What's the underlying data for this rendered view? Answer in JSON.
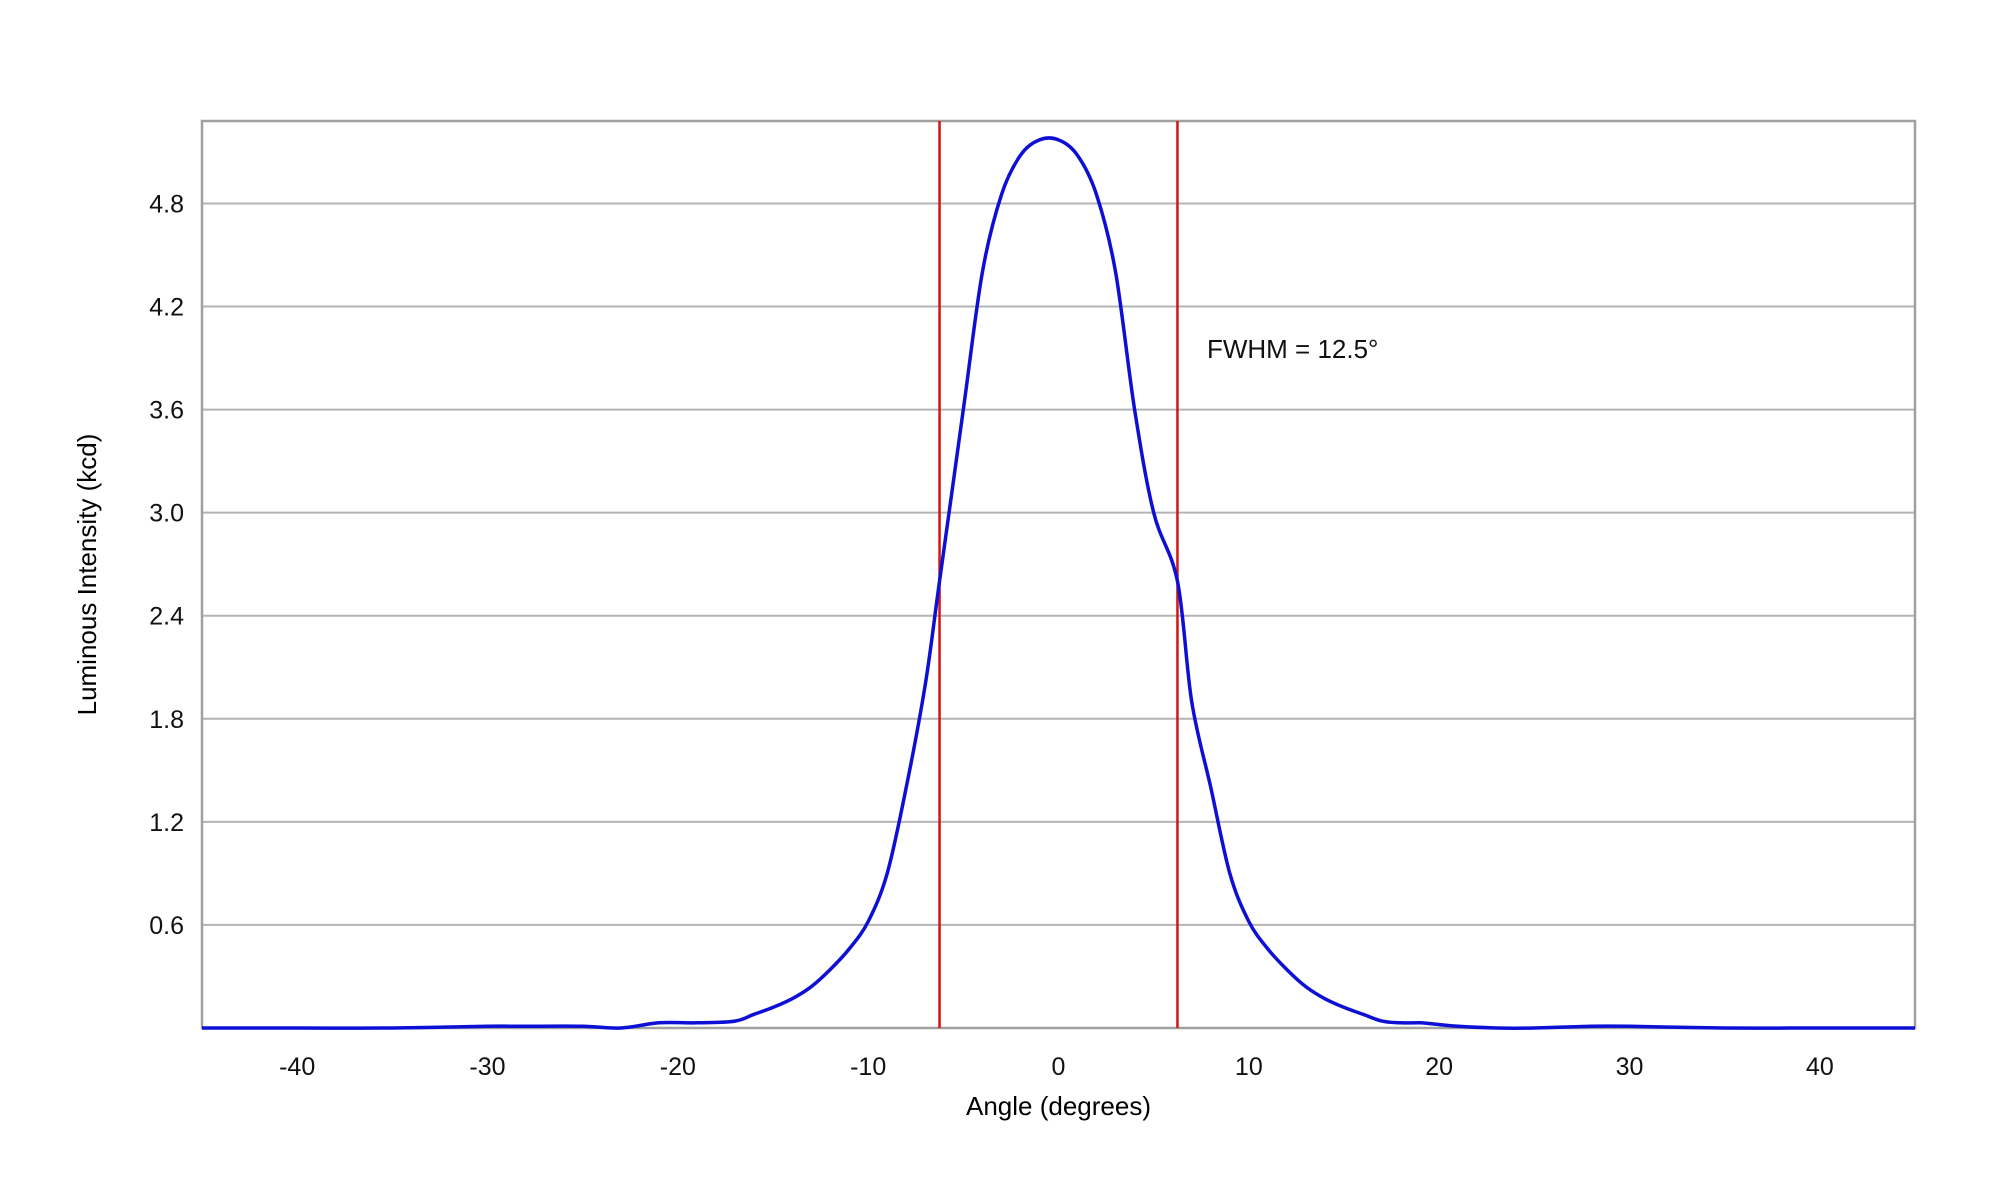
{
  "chart_data": {
    "type": "line",
    "xlabel": "Angle (degrees)",
    "ylabel": "Luminous Intensity (kcd)",
    "xlim": [
      -45,
      45
    ],
    "ylim": [
      0,
      5.28
    ],
    "xticks": [
      -40,
      -30,
      -20,
      -10,
      0,
      10,
      20,
      30,
      40
    ],
    "xtick_labels": [
      "-40",
      "-30",
      "-20",
      "-10",
      "0",
      "10",
      "20",
      "30",
      "40"
    ],
    "yticks": [
      0.6,
      1.2,
      1.8,
      2.4,
      3.0,
      3.6,
      4.2,
      4.8
    ],
    "ytick_labels": [
      "0.6",
      "1.2",
      "1.8",
      "2.4",
      "3.0",
      "3.6",
      "4.2",
      "4.8"
    ],
    "grid": "horizontal",
    "series": [
      {
        "color": "#0d10d4",
        "x": [
          -45,
          -40,
          -35,
          -30,
          -28,
          -25,
          -23,
          -21,
          -19,
          -17,
          -16,
          -15,
          -14,
          -13,
          -12,
          -11,
          -10,
          -9,
          -8,
          -7,
          -6.25,
          -5,
          -4,
          -3,
          -2,
          -1,
          0,
          1,
          2,
          3,
          4,
          5,
          6.25,
          7,
          8,
          9,
          10,
          11,
          12,
          13,
          14,
          15,
          16,
          17,
          18,
          19,
          20,
          21,
          23,
          25,
          28,
          30,
          35,
          40,
          45
        ],
        "y": [
          0.0,
          0.0,
          0.0,
          0.01,
          0.01,
          0.01,
          0.0,
          0.03,
          0.03,
          0.04,
          0.08,
          0.12,
          0.17,
          0.24,
          0.34,
          0.46,
          0.62,
          0.9,
          1.4,
          2.0,
          2.6,
          3.6,
          4.4,
          4.85,
          5.08,
          5.17,
          5.17,
          5.08,
          4.85,
          4.4,
          3.6,
          3.0,
          2.6,
          1.9,
          1.4,
          0.9,
          0.62,
          0.46,
          0.34,
          0.24,
          0.17,
          0.12,
          0.08,
          0.04,
          0.03,
          0.03,
          0.02,
          0.01,
          0.0,
          0.0,
          0.01,
          0.01,
          0.0,
          0.0,
          0.0
        ]
      }
    ],
    "vertical_lines": [
      {
        "x": -6.25,
        "color": "#d01515"
      },
      {
        "x": 6.25,
        "color": "#d01515"
      }
    ],
    "annotations": [
      {
        "text": "FWHM = 12.5°",
        "x": 7.8,
        "y": 3.9
      }
    ]
  }
}
